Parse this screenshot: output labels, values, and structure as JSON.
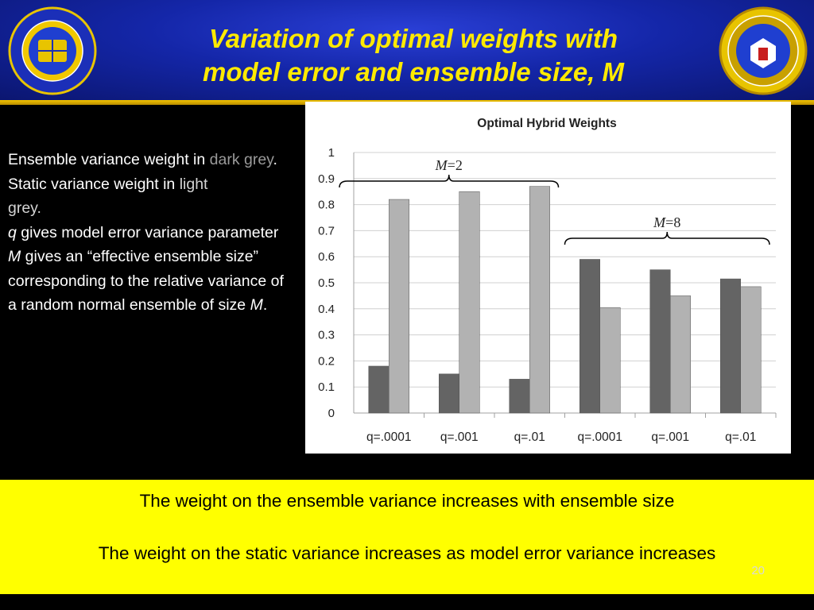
{
  "slide": {
    "title_line1": "Variation of optimal weights with",
    "title_line2": "model error and ensemble size, M",
    "page_number": "20"
  },
  "side": {
    "p1_text": "Ensemble variance weight in ",
    "p1_highlight": "dark grey",
    "p1_end": ".",
    "p2_text": "Static variance weight in ",
    "p2_highlight": "light",
    "p2_text2": "grey.",
    "p3_var": "q",
    "p3_text": " gives model error variance parameter",
    "p4_var": "M",
    "p4_text": " gives an “effective ensemble size” corresponding to the relative variance of a random normal ensemble of size ",
    "p4_var2": "M",
    "p4_end": "."
  },
  "bottom": {
    "line1": "The weight on the ensemble variance increases with ensemble size",
    "line2": "The weight on the static variance increases as model error variance increases"
  },
  "colors": {
    "ensemble_bar": "#646464",
    "static_bar": "#b2b2b2",
    "header_blue": "#1426a8",
    "title_yellow": "#ffea00",
    "band_yellow": "#ffff00"
  },
  "logos": {
    "left_icon": "naval-research-laboratory-seal-icon",
    "right_icon": "department-of-the-navy-seal-icon"
  },
  "chart_data": {
    "type": "bar",
    "title": "Optimal Hybrid Weights",
    "categories": [
      "q=.0001",
      "q=.001",
      "q=.01",
      "q=.0001",
      "q=.001",
      "q=.01"
    ],
    "series": [
      {
        "values": [
          0.18,
          0.15,
          0.13,
          0.59,
          0.55,
          0.515
        ]
      },
      {
        "values": [
          0.82,
          0.85,
          0.87,
          0.405,
          0.45,
          0.485
        ]
      }
    ],
    "ylim": [
      0,
      1
    ],
    "yticks": [
      "0",
      "0.1",
      "0.2",
      "0.3",
      "0.4",
      "0.5",
      "0.6",
      "0.7",
      "0.8",
      "0.9",
      "1"
    ],
    "grid": true,
    "annotations": [
      {
        "italic": "M",
        "rest": "=2",
        "group_start": 0,
        "group_end": 2
      },
      {
        "italic": "M",
        "rest": "=8",
        "group_start": 3,
        "group_end": 5
      }
    ]
  }
}
